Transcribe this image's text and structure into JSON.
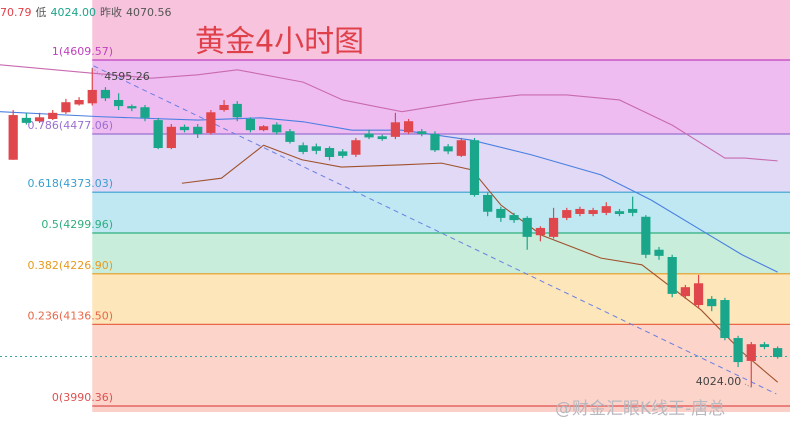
{
  "chart_data": {
    "type": "candlestick",
    "title": "黄金4小时图",
    "title_color": "#e0404a",
    "header": [
      {
        "text": "70.79",
        "color": "#e0404a"
      },
      {
        "text": "低",
        "color": "#555555"
      },
      {
        "text": "4024.00",
        "color": "#1aa68a"
      },
      {
        "text": "昨收",
        "color": "#555555"
      },
      {
        "text": "4070.56",
        "color": "#555555"
      }
    ],
    "xlim": [
      -1,
      60
    ],
    "ylim": [
      3952.8,
      4716.9
    ],
    "up_color": "#e0474c",
    "down_color": "#1aa68a",
    "open": [
      4431,
      4506,
      4500,
      4504,
      4516,
      4530,
      4532,
      4556,
      4538,
      4527,
      4525,
      4502,
      4452,
      4490,
      4490,
      4479,
      4520,
      4531,
      4504,
      4484,
      4494,
      4482,
      4457,
      4455,
      4452,
      4446,
      4440,
      4478,
      4473,
      4472,
      4480,
      4482,
      4477,
      4455,
      4438,
      4466,
      4368,
      4343,
      4332,
      4327,
      4296,
      4293,
      4327,
      4334,
      4334,
      4336,
      4339,
      4343,
      4329,
      4270,
      4257,
      4187,
      4171,
      4182,
      4180,
      4112,
      4071,
      4101,
      4094
    ],
    "high": [
      4520,
      4515,
      4515,
      4520,
      4540,
      4543,
      4595.26,
      4561,
      4550,
      4530,
      4529,
      4506,
      4495,
      4494,
      4495,
      4520,
      4538,
      4536,
      4507,
      4493,
      4498,
      4486,
      4462,
      4460,
      4455,
      4450,
      4470,
      4485,
      4476,
      4515,
      4504,
      4486,
      4482,
      4459,
      4470,
      4470,
      4372,
      4347,
      4336,
      4330,
      4312,
      4345,
      4345,
      4347,
      4345,
      4355,
      4343,
      4365,
      4332,
      4275,
      4261,
      4207,
      4225,
      4187,
      4184,
      4116,
      4105,
      4105,
      4097
    ],
    "low": [
      4431,
      4494,
      4497,
      4502,
      4513,
      4528,
      4528,
      4536,
      4520,
      4518,
      4500,
      4450,
      4450,
      4480,
      4470,
      4476,
      4517,
      4500,
      4480,
      4482,
      4476,
      4460,
      4441,
      4441,
      4430,
      4434,
      4436,
      4468,
      4465,
      4468,
      4477,
      4473,
      4445,
      4441,
      4436,
      4365,
      4330,
      4320,
      4318,
      4270,
      4285,
      4290,
      4323,
      4330,
      4330,
      4332,
      4330,
      4330,
      4255,
      4252,
      4185,
      4182,
      4166,
      4160,
      4108,
      4060,
      4024,
      4092,
      4075
    ],
    "close": [
      4511,
      4497,
      4507,
      4515,
      4534,
      4538,
      4556,
      4541,
      4527,
      4523,
      4506,
      4452,
      4490,
      4484,
      4477,
      4516,
      4529,
      4507,
      4484,
      4491,
      4480,
      4463,
      4445,
      4447,
      4436,
      4438,
      4466,
      4471,
      4468,
      4498,
      4500,
      4477,
      4448,
      4446,
      4466,
      4368,
      4338,
      4327,
      4323,
      4293,
      4309,
      4327,
      4341,
      4343,
      4341,
      4348,
      4334,
      4336,
      4261,
      4259,
      4191,
      4203,
      4210,
      4169,
      4112,
      4069,
      4101,
      4096,
      4078
    ],
    "lines": [
      {
        "color": "#c86ab0",
        "x": [
          -1,
          6,
          10.5,
          14,
          17,
          22,
          25,
          29.5,
          35,
          38.5,
          42,
          46,
          50,
          54,
          55.5,
          58
        ],
        "values": [
          4601,
          4586,
          4577,
          4583,
          4592,
          4570,
          4538,
          4517,
          4538,
          4547,
          4547,
          4538,
          4493,
          4434,
          4434,
          4429
        ]
      },
      {
        "color": "#4a7fe0",
        "x": [
          -1,
          6.7,
          14,
          18.8,
          22,
          25.7,
          29.5,
          34.8,
          39.3,
          44.6,
          48.4,
          52.2,
          55.3,
          58
        ],
        "values": [
          4517,
          4508,
          4502,
          4506,
          4499,
          4484,
          4484,
          4466,
          4440,
          4404,
          4359,
          4305,
          4261,
          4230
        ]
      },
      {
        "color": "#a0522d",
        "x": [
          12.8,
          15.8,
          19,
          21.9,
          24.9,
          29.5,
          32.5,
          34.8,
          37,
          40.1,
          44.6,
          47.7,
          52.2,
          55.3,
          58
        ],
        "values": [
          4389,
          4398,
          4457,
          4431,
          4418,
          4422,
          4425,
          4413,
          4350,
          4296,
          4255,
          4243,
          4162,
          4087,
          4033
        ]
      }
    ],
    "trendline": {
      "color": "#6b7fe0",
      "x": [
        6.1,
        57.9
      ],
      "values": [
        4599,
        4012
      ]
    },
    "price_line": {
      "value": 4079,
      "color": "#3aa8a0"
    },
    "fib_levels": [
      {
        "label": "1(4609.57)",
        "value": 4609.57,
        "color": "#c040c0"
      },
      {
        "label": "0.786(4477.06)",
        "value": 4477.06,
        "color": "#9a70d0"
      },
      {
        "label": "0.618(4373.03)",
        "value": 4373.03,
        "color": "#3a9fd0"
      },
      {
        "label": "0.5(4299.96)",
        "value": 4299.96,
        "color": "#2fae7e"
      },
      {
        "label": "0.382(4226.90)",
        "value": 4226.9,
        "color": "#e89a20"
      },
      {
        "label": "0.236(4136.50)",
        "value": 4136.5,
        "color": "#e86848"
      },
      {
        "label": "0(3990.36)",
        "value": 3990.36,
        "color": "#e05050"
      }
    ],
    "zone_colors": [
      "#f8c4dd",
      "#efbcf1",
      "#e1d9f5",
      "#bfe8f3",
      "#c8eddb",
      "#fde6ba",
      "#fcd4ca",
      "#fad0c8"
    ],
    "annotations": [
      {
        "label": "4595.26",
        "value": 4595.26,
        "x": 6
      },
      {
        "label": "4024.00",
        "value": 4024,
        "x": 56
      }
    ],
    "watermark": "@财金汇眼K线王-唐总"
  }
}
